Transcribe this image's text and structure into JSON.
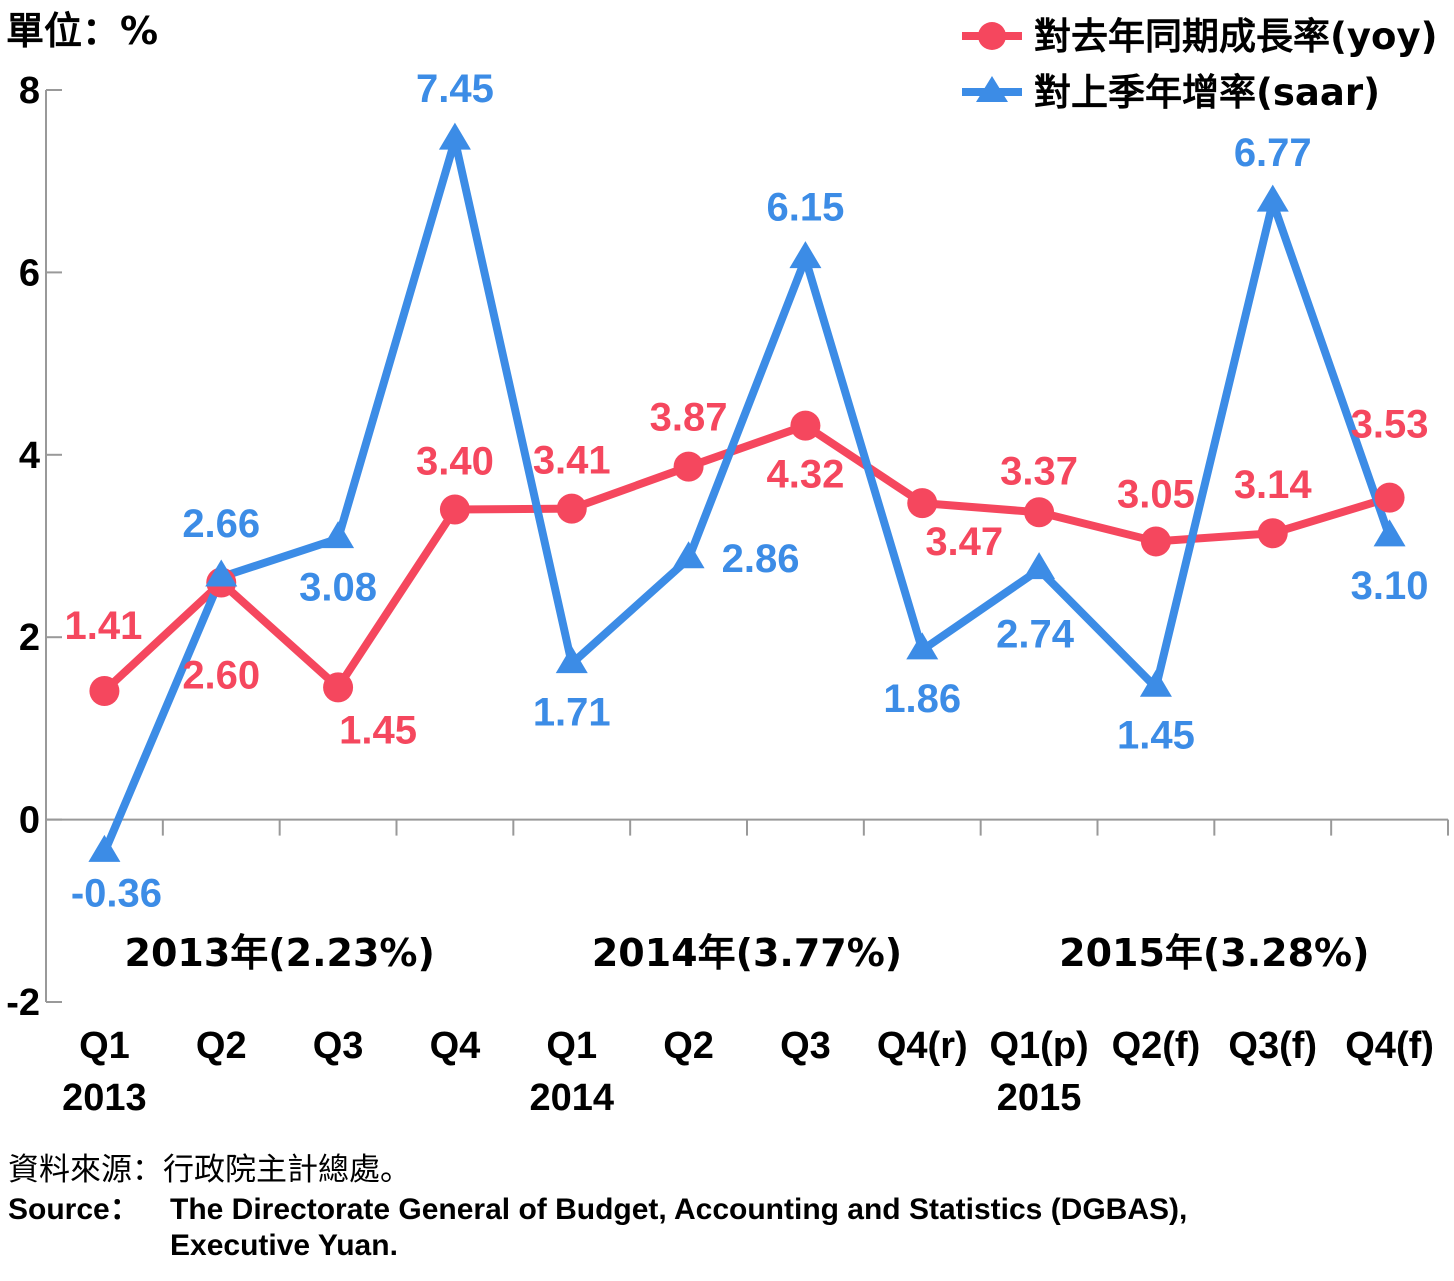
{
  "chart_data": {
    "type": "line",
    "unit_label": "單位：%",
    "categories": [
      "Q1",
      "Q2",
      "Q3",
      "Q4",
      "Q1",
      "Q2",
      "Q3",
      "Q4(r)",
      "Q1(p)",
      "Q2(f)",
      "Q3(f)",
      "Q4(f)"
    ],
    "year_labels": [
      {
        "index": 0,
        "label": "2013"
      },
      {
        "index": 4,
        "label": "2014"
      },
      {
        "index": 8,
        "label": "2015"
      }
    ],
    "annual_labels": [
      {
        "from": 0,
        "to": 3,
        "label": "2013年(2.23%)"
      },
      {
        "from": 4,
        "to": 7,
        "label": "2014年(3.77%)"
      },
      {
        "from": 8,
        "to": 11,
        "label": "2015年(3.28%)"
      }
    ],
    "ylim": [
      -2,
      8
    ],
    "yticks": [
      -2,
      0,
      2,
      4,
      6,
      8
    ],
    "series": [
      {
        "name": "對去年同期成長率(yoy)",
        "color": "#F5475E",
        "marker": "circle",
        "values": [
          1.41,
          2.6,
          1.45,
          3.4,
          3.41,
          3.87,
          4.32,
          3.47,
          3.37,
          3.05,
          3.14,
          3.53
        ],
        "labels": [
          "1.41",
          "2.60",
          "1.45",
          "3.40",
          "3.41",
          "3.87",
          "4.32",
          "3.47",
          "3.37",
          "3.05",
          "3.14",
          "3.53"
        ]
      },
      {
        "name": "對上季年增率(saar)",
        "color": "#3C8CE6",
        "marker": "triangle",
        "values": [
          -0.36,
          2.66,
          3.08,
          7.45,
          1.71,
          2.86,
          6.15,
          1.86,
          2.74,
          1.45,
          6.77,
          3.1
        ],
        "labels": [
          "-0.36",
          "2.66",
          "3.08",
          "7.45",
          "1.71",
          "2.86",
          "6.15",
          "1.86",
          "2.74",
          "1.45",
          "6.77",
          "3.10"
        ]
      }
    ],
    "legend": "top-right"
  },
  "source": {
    "zh": "資料來源：行政院主計總處。",
    "en_label": "Source：",
    "en_line1": "The Directorate General of Budget, Accounting and Statistics (DGBAS),",
    "en_line2": "Executive Yuan."
  }
}
